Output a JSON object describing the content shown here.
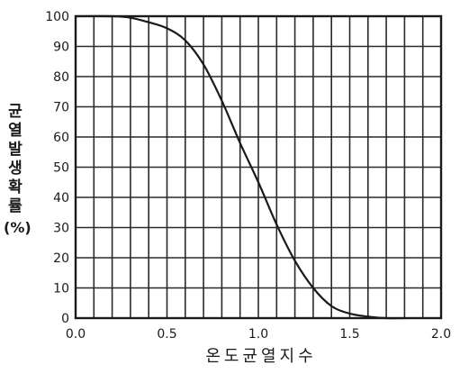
{
  "chart_data": {
    "type": "line",
    "xlabel": "온도균열지수",
    "ylabel": "균열발생확률",
    "ylabel_unit": "(%)",
    "xlim": [
      0.0,
      2.0
    ],
    "ylim": [
      0,
      100
    ],
    "x_ticks": [
      "0.0",
      "0.5",
      "1.0",
      "1.5",
      "2.0"
    ],
    "y_ticks": [
      "0",
      "10",
      "20",
      "30",
      "40",
      "50",
      "60",
      "70",
      "80",
      "90",
      "100"
    ],
    "grid": true,
    "x_gridlines": [
      0.0,
      0.1,
      0.2,
      0.3,
      0.4,
      0.5,
      0.6,
      0.7,
      0.8,
      0.9,
      1.0,
      1.1,
      1.2,
      1.3,
      1.4,
      1.5,
      1.6,
      1.7,
      1.8,
      1.9,
      2.0
    ],
    "series": [
      {
        "color": "#1a1a1a",
        "x": [
          0.0,
          0.2,
          0.3,
          0.4,
          0.5,
          0.6,
          0.7,
          0.8,
          0.9,
          1.0,
          1.1,
          1.2,
          1.3,
          1.4,
          1.5,
          1.6,
          1.7,
          1.8
        ],
        "y": [
          100,
          100,
          99.5,
          98,
          96,
          92,
          84,
          72,
          58,
          45,
          31,
          19,
          10,
          4,
          1.5,
          0.5,
          0,
          0
        ]
      }
    ]
  }
}
